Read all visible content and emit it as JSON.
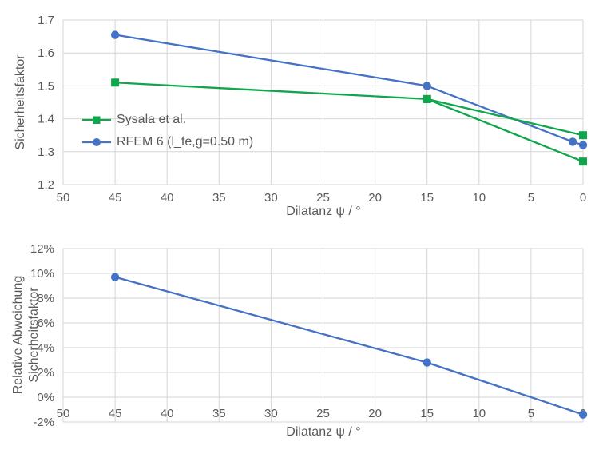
{
  "colors": {
    "series_blue": "#4472C4",
    "series_green": "#0FA64C",
    "gridline": "#D6D6D6",
    "text": "#595959"
  },
  "chart_data": [
    {
      "id": "sicherheitsfaktor-vs-dilatanz",
      "type": "line",
      "title": "",
      "x_title": "Dilatanz ψ  / °",
      "y_title_lines": [
        "Sicherheitsfaktor"
      ],
      "x_reversed": true,
      "xlim": [
        50,
        0
      ],
      "ylim": [
        1.2,
        1.7
      ],
      "grid": true,
      "legend_position": "inside-upper-left",
      "x_ticks": [
        {
          "v": 50,
          "label": "50"
        },
        {
          "v": 45,
          "label": "45"
        },
        {
          "v": 40,
          "label": "40"
        },
        {
          "v": 35,
          "label": "35"
        },
        {
          "v": 30,
          "label": "30"
        },
        {
          "v": 25,
          "label": "25"
        },
        {
          "v": 20,
          "label": "20"
        },
        {
          "v": 15,
          "label": "15"
        },
        {
          "v": 10,
          "label": "10"
        },
        {
          "v": 5,
          "label": "5"
        },
        {
          "v": 0,
          "label": "0"
        }
      ],
      "y_ticks": [
        {
          "v": 1.7,
          "label": "1.7"
        },
        {
          "v": 1.6,
          "label": "1.6"
        },
        {
          "v": 1.5,
          "label": "1.5"
        },
        {
          "v": 1.4,
          "label": "1.4"
        },
        {
          "v": 1.3,
          "label": "1.3"
        },
        {
          "v": 1.2,
          "label": "1.2"
        }
      ],
      "legend": [
        {
          "label": "Sysala et al.",
          "color": "series_green",
          "marker": "square"
        },
        {
          "label": "RFEM 6 (l_fe,g=0.50 m)",
          "color": "series_blue",
          "marker": "circle"
        }
      ],
      "series": [
        {
          "name": "RFEM 6 (l_fe,g=0.50 m)",
          "color": "series_blue",
          "marker": "circle",
          "points": [
            [
              45,
              1.655
            ],
            [
              15,
              1.5
            ],
            [
              1,
              1.33
            ],
            [
              0,
              1.32
            ]
          ]
        },
        {
          "name": "Sysala et al.",
          "color": "series_green",
          "marker": "square",
          "points": [
            [
              45,
              1.51
            ],
            [
              15,
              1.46
            ],
            [
              0,
              1.35
            ]
          ]
        },
        {
          "name": "Sysala et al.",
          "color": "series_green",
          "marker": "square",
          "points": [
            [
              15,
              1.46
            ],
            [
              0,
              1.27
            ]
          ]
        }
      ]
    },
    {
      "id": "relative-abweichung-vs-dilatanz",
      "type": "line",
      "title": "",
      "x_title": "Dilatanz ψ  / °",
      "y_title_lines": [
        "Relative Abweichung",
        "Sicherheitsfaktor"
      ],
      "x_reversed": true,
      "xlim": [
        50,
        0
      ],
      "ylim": [
        -2,
        12
      ],
      "y_unit": "%",
      "grid": true,
      "x_ticks": [
        {
          "v": 50,
          "label": "50"
        },
        {
          "v": 45,
          "label": "45"
        },
        {
          "v": 40,
          "label": "40"
        },
        {
          "v": 35,
          "label": "35"
        },
        {
          "v": 30,
          "label": "30"
        },
        {
          "v": 25,
          "label": "25"
        },
        {
          "v": 20,
          "label": "20"
        },
        {
          "v": 15,
          "label": "15"
        },
        {
          "v": 10,
          "label": "10"
        },
        {
          "v": 5,
          "label": "5"
        },
        {
          "v": 0,
          "label": "0"
        }
      ],
      "y_ticks": [
        {
          "v": 12,
          "label": "12%"
        },
        {
          "v": 10,
          "label": "10%"
        },
        {
          "v": 8,
          "label": "8%"
        },
        {
          "v": 6,
          "label": "6%"
        },
        {
          "v": 4,
          "label": "4%"
        },
        {
          "v": 2,
          "label": "2%"
        },
        {
          "v": 0,
          "label": "0%"
        },
        {
          "v": -2,
          "label": "-2%"
        }
      ],
      "legend": [],
      "series": [
        {
          "name": "RFEM 6 (l_fe,g=0.50 m)",
          "color": "series_blue",
          "marker": "circle",
          "points": [
            [
              45,
              9.7
            ],
            [
              15,
              2.8
            ],
            [
              0,
              -1.4
            ]
          ]
        }
      ]
    }
  ]
}
